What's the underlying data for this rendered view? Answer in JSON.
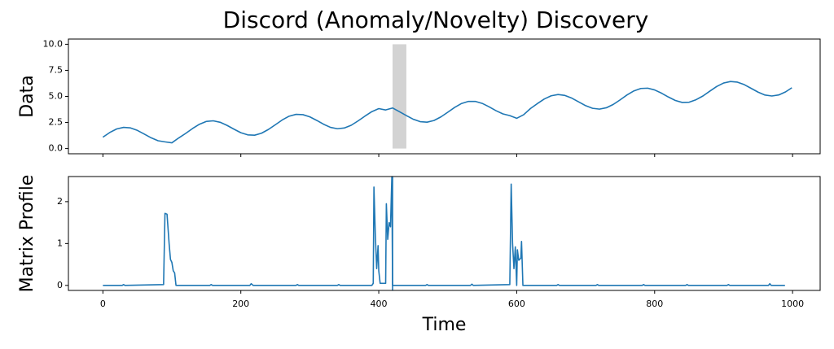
{
  "title": "Discord (Anomaly/Novelty) Discovery",
  "chart_data": [
    {
      "type": "line",
      "ylabel": "Data",
      "color": "#1f77b4",
      "x": [
        0,
        10,
        20,
        30,
        40,
        50,
        60,
        70,
        80,
        90,
        100,
        110,
        120,
        130,
        140,
        150,
        160,
        170,
        180,
        190,
        200,
        210,
        220,
        230,
        240,
        250,
        260,
        270,
        280,
        290,
        300,
        310,
        320,
        330,
        340,
        350,
        360,
        370,
        380,
        390,
        400,
        410,
        420,
        430,
        440,
        450,
        460,
        470,
        480,
        490,
        500,
        510,
        520,
        530,
        540,
        550,
        560,
        570,
        580,
        590,
        600,
        610,
        620,
        630,
        640,
        650,
        660,
        670,
        680,
        690,
        700,
        710,
        720,
        730,
        740,
        750,
        760,
        770,
        780,
        790,
        800,
        810,
        820,
        830,
        840,
        850,
        860,
        870,
        880,
        890,
        900,
        910,
        920,
        930,
        940,
        950,
        960,
        970,
        980,
        990,
        999
      ],
      "values": [
        1.09,
        1.54,
        1.88,
        2.03,
        1.98,
        1.74,
        1.39,
        1.03,
        0.75,
        0.64,
        0.55,
        1.02,
        1.45,
        1.92,
        2.33,
        2.6,
        2.66,
        2.52,
        2.22,
        1.86,
        1.52,
        1.31,
        1.28,
        1.47,
        1.83,
        2.28,
        2.74,
        3.1,
        3.28,
        3.25,
        3.04,
        2.7,
        2.33,
        2.03,
        1.9,
        1.97,
        2.23,
        2.65,
        3.11,
        3.54,
        3.83,
        3.7,
        3.89,
        3.53,
        3.16,
        2.81,
        2.58,
        2.53,
        2.69,
        3.03,
        3.48,
        3.94,
        4.32,
        4.52,
        4.52,
        4.33,
        4.0,
        3.63,
        3.32,
        3.16,
        2.9,
        3.24,
        3.84,
        4.31,
        4.75,
        5.06,
        5.18,
        5.09,
        4.83,
        4.47,
        4.11,
        3.86,
        3.78,
        3.91,
        4.23,
        4.67,
        5.14,
        5.53,
        5.76,
        5.79,
        5.62,
        5.31,
        4.94,
        4.61,
        4.42,
        4.44,
        4.68,
        5.04,
        5.5,
        5.95,
        6.28,
        6.43,
        6.37,
        6.13,
        5.77,
        5.41,
        5.13,
        5.04,
        5.14,
        5.44,
        5.83
      ],
      "span": {
        "x": [
          420,
          440
        ],
        "y": [
          0,
          10
        ],
        "color": "#d3d3d3"
      },
      "xlim": [
        -50,
        1040
      ],
      "xticks": [
        0,
        200,
        400,
        600,
        800,
        1000
      ],
      "ylim": [
        -0.5,
        10.5
      ],
      "yticks": [
        {
          "value": 0,
          "label": "0.0"
        },
        {
          "value": 2.5,
          "label": "2.5"
        },
        {
          "value": 5,
          "label": "5.0"
        },
        {
          "value": 7.5,
          "label": "7.5"
        },
        {
          "value": 10,
          "label": "10.0"
        }
      ]
    },
    {
      "type": "line",
      "ylabel": "Matrix Profile",
      "xlabel": "Time",
      "color": "#1f77b4",
      "x": [
        0,
        28,
        30,
        32,
        88,
        90,
        93,
        96,
        98,
        100,
        102,
        104,
        106,
        155,
        157,
        159,
        213,
        215,
        218,
        280,
        282,
        284,
        340,
        342,
        344,
        390,
        392,
        393,
        395,
        397,
        399,
        400,
        402,
        410,
        411,
        413,
        415,
        417,
        419,
        420,
        422,
        468,
        470,
        472,
        533,
        535,
        537,
        590,
        592,
        594,
        596,
        598,
        600,
        601,
        603,
        606,
        607,
        609,
        658,
        660,
        662,
        715,
        717,
        719,
        782,
        784,
        786,
        845,
        847,
        849,
        905,
        907,
        909,
        965,
        967,
        969,
        989
      ],
      "values": [
        0,
        0,
        0.02,
        0,
        0.02,
        1.72,
        1.7,
        1.0,
        0.62,
        0.55,
        0.35,
        0.3,
        0,
        0,
        0.02,
        0,
        0,
        0.04,
        0,
        0,
        0.02,
        0,
        0,
        0.02,
        0,
        0,
        0.05,
        2.35,
        1.2,
        0.4,
        0.95,
        0.35,
        0.05,
        0.05,
        1.95,
        1.1,
        1.5,
        1.4,
        2.6,
        0,
        0,
        0,
        0.02,
        0,
        0,
        0.03,
        0,
        0.02,
        2.42,
        1.0,
        0.4,
        0.92,
        0,
        0.85,
        0.6,
        0.65,
        1.05,
        0,
        0,
        0.02,
        0,
        0,
        0.02,
        0,
        0,
        0.02,
        0,
        0,
        0.02,
        0,
        0,
        0.02,
        0,
        0,
        0.04,
        0,
        0
      ],
      "vline": 420,
      "xlim": [
        -50,
        1040
      ],
      "xticks": [
        0,
        200,
        400,
        600,
        800,
        1000
      ],
      "ylim": [
        -0.12,
        2.6
      ],
      "yticks": [
        0,
        1,
        2
      ]
    }
  ]
}
